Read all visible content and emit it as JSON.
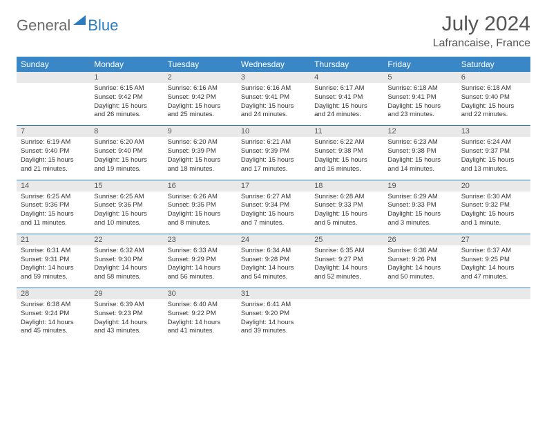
{
  "brand": {
    "part1": "General",
    "part2": "Blue"
  },
  "title": "July 2024",
  "location": "Lafrancaise, France",
  "header_color": "#3a87c8",
  "accent_color": "#2b7bbf",
  "daynum_bg": "#e9e9e9",
  "day_names": [
    "Sunday",
    "Monday",
    "Tuesday",
    "Wednesday",
    "Thursday",
    "Friday",
    "Saturday"
  ],
  "weeks": [
    [
      null,
      {
        "n": "1",
        "sr": "6:15 AM",
        "ss": "9:42 PM",
        "dl": "15 hours and 26 minutes."
      },
      {
        "n": "2",
        "sr": "6:16 AM",
        "ss": "9:42 PM",
        "dl": "15 hours and 25 minutes."
      },
      {
        "n": "3",
        "sr": "6:16 AM",
        "ss": "9:41 PM",
        "dl": "15 hours and 24 minutes."
      },
      {
        "n": "4",
        "sr": "6:17 AM",
        "ss": "9:41 PM",
        "dl": "15 hours and 24 minutes."
      },
      {
        "n": "5",
        "sr": "6:18 AM",
        "ss": "9:41 PM",
        "dl": "15 hours and 23 minutes."
      },
      {
        "n": "6",
        "sr": "6:18 AM",
        "ss": "9:40 PM",
        "dl": "15 hours and 22 minutes."
      }
    ],
    [
      {
        "n": "7",
        "sr": "6:19 AM",
        "ss": "9:40 PM",
        "dl": "15 hours and 21 minutes."
      },
      {
        "n": "8",
        "sr": "6:20 AM",
        "ss": "9:40 PM",
        "dl": "15 hours and 19 minutes."
      },
      {
        "n": "9",
        "sr": "6:20 AM",
        "ss": "9:39 PM",
        "dl": "15 hours and 18 minutes."
      },
      {
        "n": "10",
        "sr": "6:21 AM",
        "ss": "9:39 PM",
        "dl": "15 hours and 17 minutes."
      },
      {
        "n": "11",
        "sr": "6:22 AM",
        "ss": "9:38 PM",
        "dl": "15 hours and 16 minutes."
      },
      {
        "n": "12",
        "sr": "6:23 AM",
        "ss": "9:38 PM",
        "dl": "15 hours and 14 minutes."
      },
      {
        "n": "13",
        "sr": "6:24 AM",
        "ss": "9:37 PM",
        "dl": "15 hours and 13 minutes."
      }
    ],
    [
      {
        "n": "14",
        "sr": "6:25 AM",
        "ss": "9:36 PM",
        "dl": "15 hours and 11 minutes."
      },
      {
        "n": "15",
        "sr": "6:25 AM",
        "ss": "9:36 PM",
        "dl": "15 hours and 10 minutes."
      },
      {
        "n": "16",
        "sr": "6:26 AM",
        "ss": "9:35 PM",
        "dl": "15 hours and 8 minutes."
      },
      {
        "n": "17",
        "sr": "6:27 AM",
        "ss": "9:34 PM",
        "dl": "15 hours and 7 minutes."
      },
      {
        "n": "18",
        "sr": "6:28 AM",
        "ss": "9:33 PM",
        "dl": "15 hours and 5 minutes."
      },
      {
        "n": "19",
        "sr": "6:29 AM",
        "ss": "9:33 PM",
        "dl": "15 hours and 3 minutes."
      },
      {
        "n": "20",
        "sr": "6:30 AM",
        "ss": "9:32 PM",
        "dl": "15 hours and 1 minute."
      }
    ],
    [
      {
        "n": "21",
        "sr": "6:31 AM",
        "ss": "9:31 PM",
        "dl": "14 hours and 59 minutes."
      },
      {
        "n": "22",
        "sr": "6:32 AM",
        "ss": "9:30 PM",
        "dl": "14 hours and 58 minutes."
      },
      {
        "n": "23",
        "sr": "6:33 AM",
        "ss": "9:29 PM",
        "dl": "14 hours and 56 minutes."
      },
      {
        "n": "24",
        "sr": "6:34 AM",
        "ss": "9:28 PM",
        "dl": "14 hours and 54 minutes."
      },
      {
        "n": "25",
        "sr": "6:35 AM",
        "ss": "9:27 PM",
        "dl": "14 hours and 52 minutes."
      },
      {
        "n": "26",
        "sr": "6:36 AM",
        "ss": "9:26 PM",
        "dl": "14 hours and 50 minutes."
      },
      {
        "n": "27",
        "sr": "6:37 AM",
        "ss": "9:25 PM",
        "dl": "14 hours and 47 minutes."
      }
    ],
    [
      {
        "n": "28",
        "sr": "6:38 AM",
        "ss": "9:24 PM",
        "dl": "14 hours and 45 minutes."
      },
      {
        "n": "29",
        "sr": "6:39 AM",
        "ss": "9:23 PM",
        "dl": "14 hours and 43 minutes."
      },
      {
        "n": "30",
        "sr": "6:40 AM",
        "ss": "9:22 PM",
        "dl": "14 hours and 41 minutes."
      },
      {
        "n": "31",
        "sr": "6:41 AM",
        "ss": "9:20 PM",
        "dl": "14 hours and 39 minutes."
      },
      null,
      null,
      null
    ]
  ],
  "labels": {
    "sunrise": "Sunrise:",
    "sunset": "Sunset:",
    "daylight": "Daylight:"
  }
}
